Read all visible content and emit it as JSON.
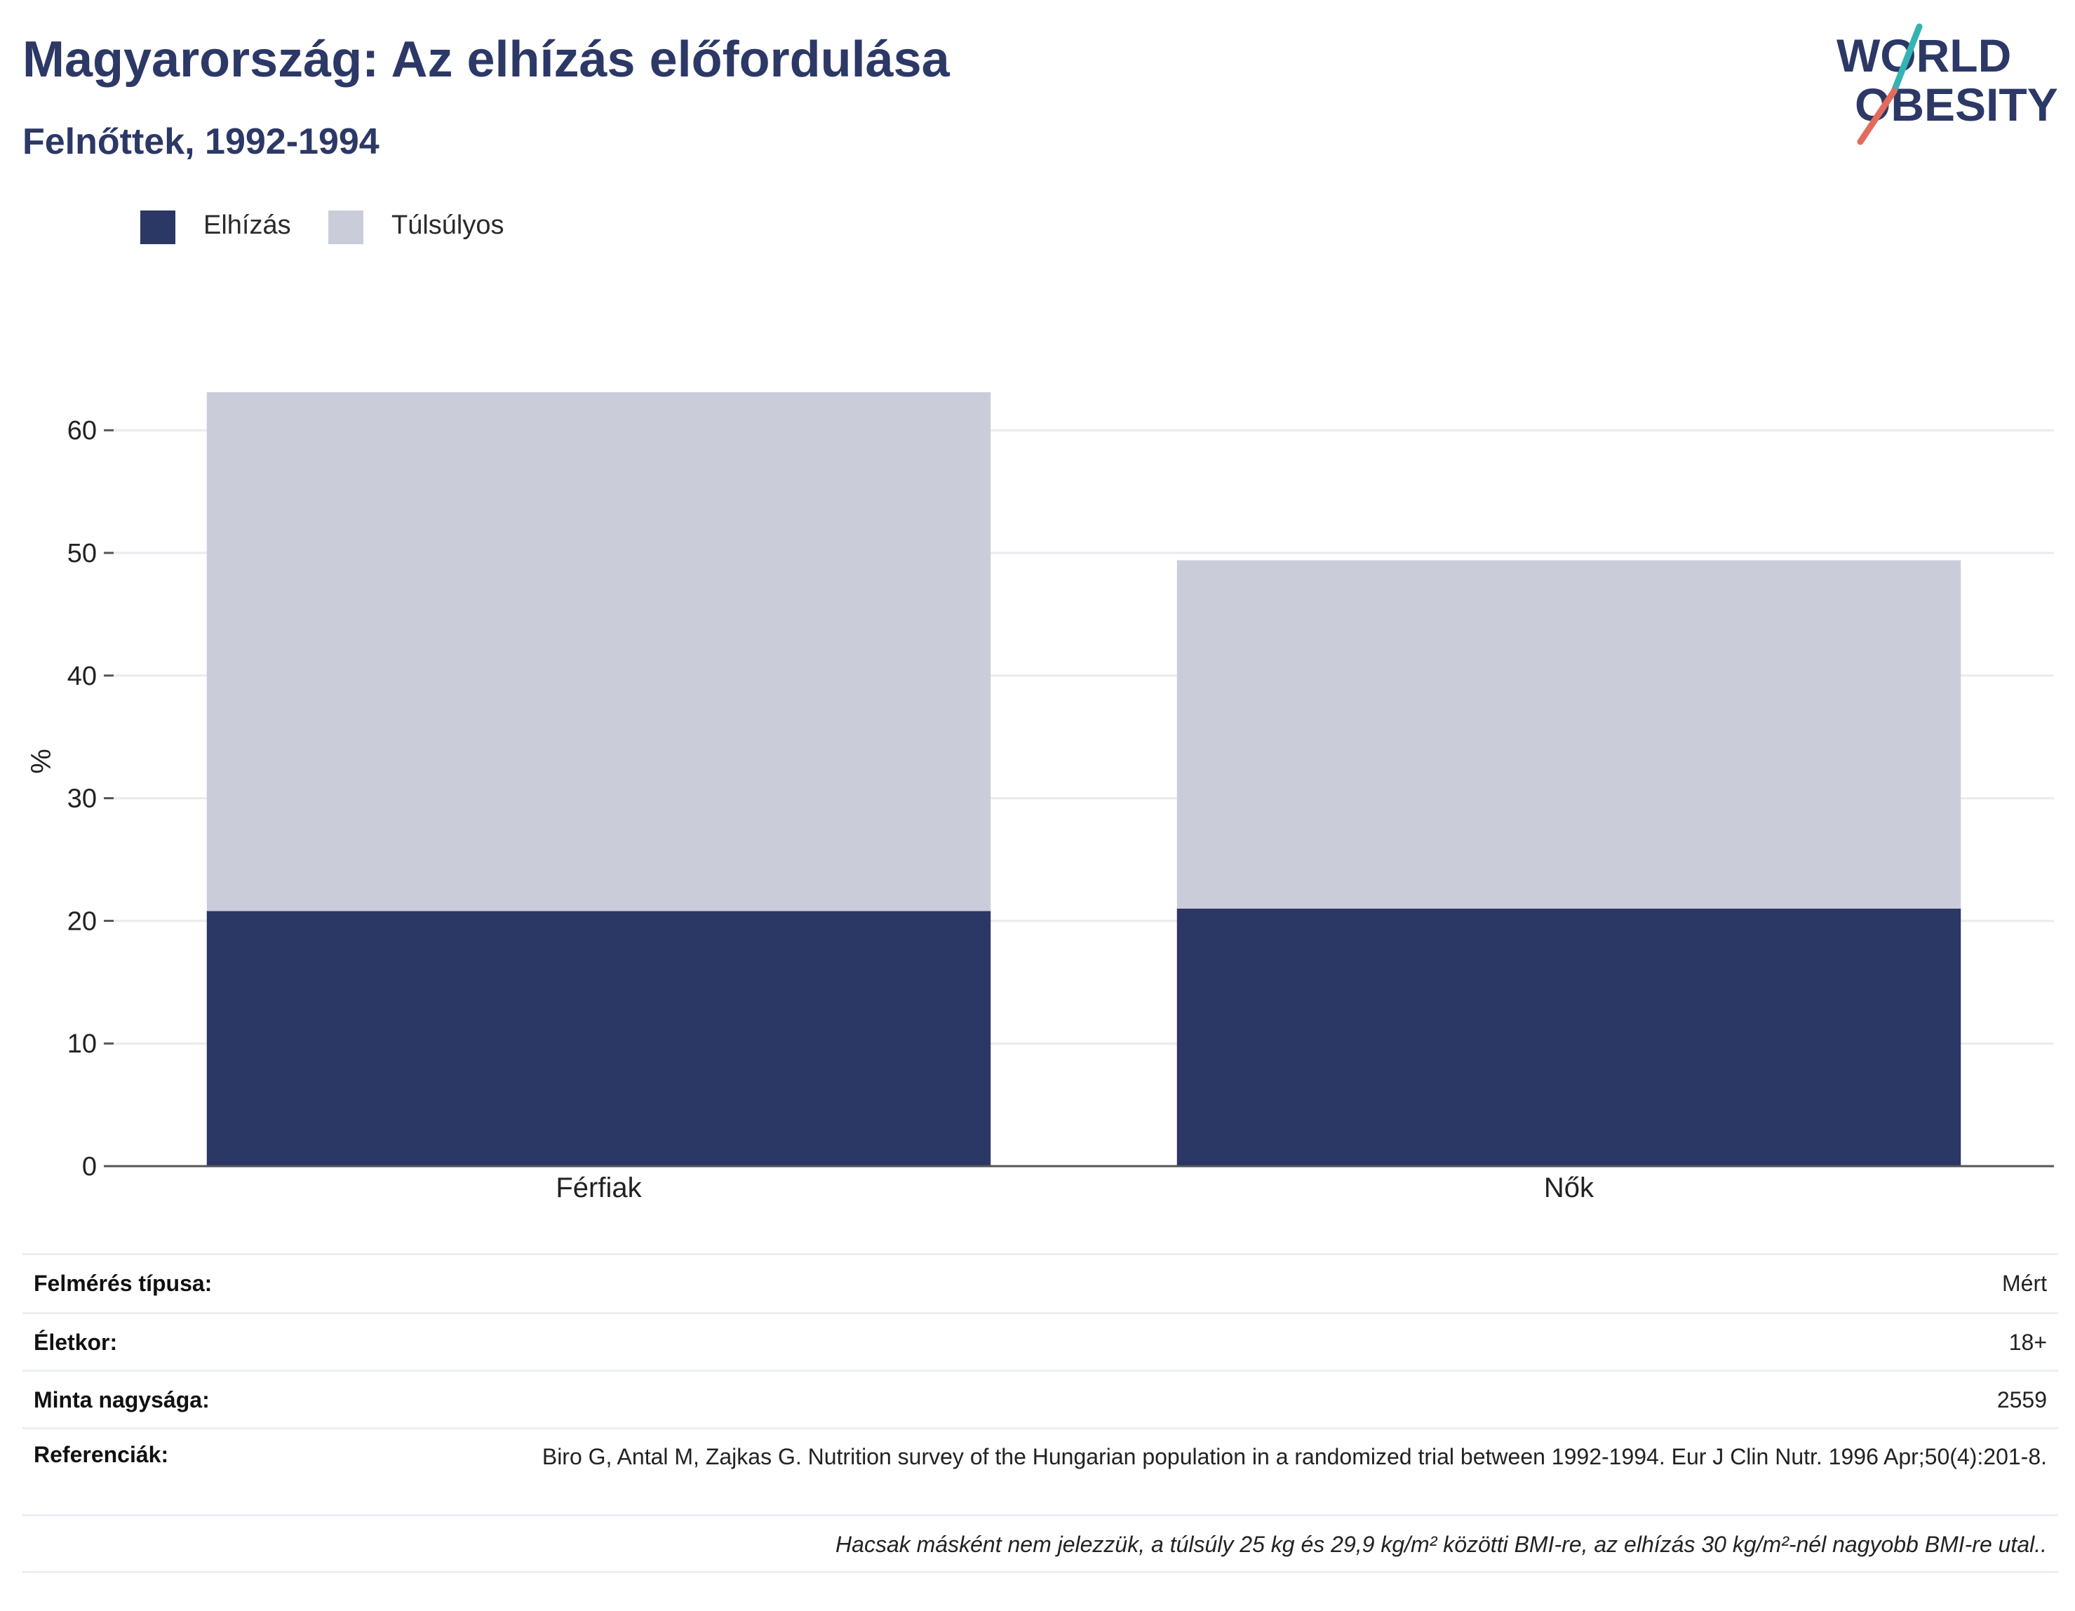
{
  "header": {
    "title": "Magyarország: Az elhízás előfordulása",
    "subtitle": "Felnőttek, 1992-1994",
    "logo_line1": "WORLD",
    "logo_line2": "OBESITY"
  },
  "colors": {
    "obesity": "#2b3764",
    "overweight": "#cacdd9",
    "title": "#2c3866",
    "grid": "#ebebef",
    "axis": "#555555",
    "logo_teal": "#34b3b3",
    "logo_coral": "#e36b5d"
  },
  "chart_data": {
    "type": "bar",
    "stacked": true,
    "categories": [
      "Férfiak",
      "Nők"
    ],
    "series": [
      {
        "name": "Elhízás",
        "values": [
          20.8,
          21.0
        ],
        "color": "#2b3764"
      },
      {
        "name": "Túlsúlyos",
        "values": [
          42.3,
          28.4
        ],
        "color": "#cacdd9"
      }
    ],
    "ylabel": "%",
    "xlabel": "",
    "ylim": [
      0,
      65
    ],
    "yticks": [
      0,
      10,
      20,
      30,
      40,
      50,
      60
    ],
    "grid": true,
    "legend_position": "top-left"
  },
  "info": {
    "survey_type_label": "Felmérés típusa:",
    "survey_type_value": "Mért",
    "age_label": "Életkor:",
    "age_value": "18+",
    "sample_label": "Minta nagysága:",
    "sample_value": "2559",
    "references_label": "Referenciák:",
    "references_value": "Biro G, Antal M, Zajkas G. Nutrition survey of the Hungarian population in a randomized trial between 1992-1994. Eur J Clin Nutr. 1996 Apr;50(4):201-8.",
    "note": "Hacsak másként nem jelezzük, a túlsúly 25 kg és 29,9 kg/m² közötti BMI-re, az elhízás 30 kg/m²-nél nagyobb BMI-re utal.."
  }
}
